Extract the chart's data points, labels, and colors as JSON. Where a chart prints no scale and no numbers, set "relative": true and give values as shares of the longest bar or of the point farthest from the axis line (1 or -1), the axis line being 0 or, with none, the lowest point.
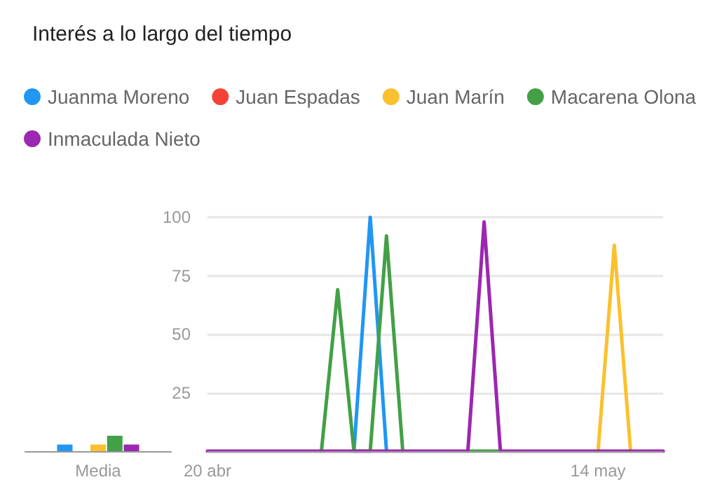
{
  "chart_data": [
    {
      "type": "line",
      "title": "Interés a lo largo del tiempo",
      "x": [
        "--04-20",
        "--04-21",
        "--04-22",
        "--04-23",
        "--04-24",
        "--04-25",
        "--04-26",
        "--04-27",
        "--04-28",
        "--04-29",
        "--04-30",
        "--05-01",
        "--05-02",
        "--05-03",
        "--05-04",
        "--05-05",
        "--05-06",
        "--05-07",
        "--05-08",
        "--05-09",
        "--05-10",
        "--05-11",
        "--05-12",
        "--05-13",
        "--05-14",
        "--05-15",
        "--05-16",
        "--05-17",
        "--05-18"
      ],
      "series": [
        {
          "name": "Juanma Moreno",
          "color": "#2196f3",
          "values": [
            null,
            null,
            null,
            null,
            null,
            null,
            null,
            null,
            null,
            0,
            100,
            0,
            null,
            null,
            null,
            null,
            null,
            null,
            null,
            null,
            null,
            null,
            null,
            null,
            null,
            null,
            null,
            null,
            null
          ]
        },
        {
          "name": "Juan Espadas",
          "color": "#f44336",
          "values": [
            null,
            null,
            null,
            null,
            null,
            null,
            null,
            null,
            null,
            null,
            null,
            null,
            null,
            null,
            null,
            null,
            null,
            null,
            null,
            null,
            null,
            null,
            null,
            null,
            null,
            null,
            null,
            null,
            null
          ]
        },
        {
          "name": "Juan Marín",
          "color": "#fbc02d",
          "values": [
            null,
            null,
            null,
            null,
            null,
            null,
            null,
            null,
            null,
            null,
            null,
            null,
            null,
            null,
            null,
            null,
            null,
            null,
            null,
            null,
            null,
            null,
            null,
            null,
            0,
            88,
            0,
            null,
            null
          ]
        },
        {
          "name": "Macarena Olona",
          "color": "#43a047",
          "values": [
            null,
            null,
            null,
            null,
            null,
            null,
            null,
            0,
            69,
            0,
            0,
            92,
            0,
            null,
            null,
            null,
            0,
            0,
            0,
            null,
            null,
            null,
            null,
            null,
            null,
            null,
            null,
            null,
            null
          ]
        },
        {
          "name": "Inmaculada Nieto",
          "color": "#9c27b0",
          "values": [
            0,
            0,
            0,
            0,
            0,
            0,
            0,
            0,
            0,
            0,
            0,
            0,
            0,
            0,
            0,
            0,
            0,
            98,
            0,
            0,
            0,
            0,
            0,
            0,
            0,
            0,
            0,
            0,
            0
          ]
        }
      ],
      "xlim": [
        "--04-20",
        "--05-18"
      ],
      "xticks": [
        {
          "value": "--04-20",
          "label": "20 abr"
        },
        {
          "value": "--05-14",
          "label": "14 may"
        }
      ],
      "ylim": [
        0,
        100
      ],
      "yticks": [
        25,
        50,
        75,
        100
      ],
      "grid": "y",
      "legend": "top left",
      "marker": "none"
    },
    {
      "type": "bar",
      "relative": true,
      "categories": [
        "Media"
      ],
      "series": [
        {
          "color": "#2196f3",
          "values": [
            0.43
          ]
        },
        {
          "color": "#f44336",
          "values": [
            0
          ]
        },
        {
          "color": "#fbc02d",
          "values": [
            0.43
          ]
        },
        {
          "color": "#43a047",
          "values": [
            1
          ]
        },
        {
          "color": "#9c27b0",
          "values": [
            0.43
          ]
        }
      ]
    }
  ]
}
